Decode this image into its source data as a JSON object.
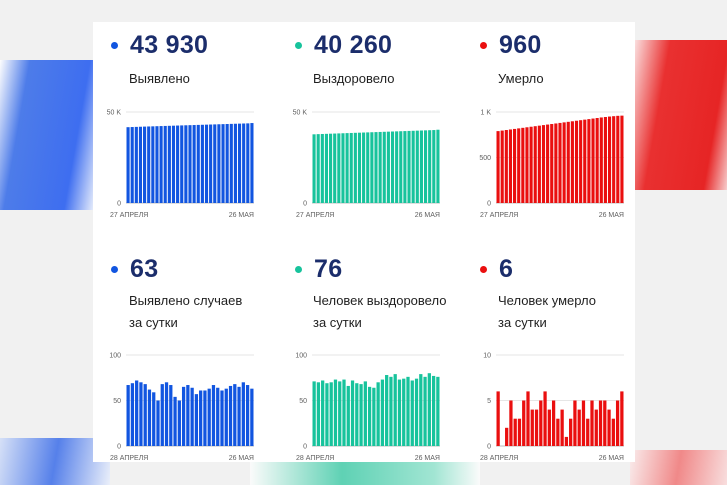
{
  "colors": {
    "blue": "#1155e0",
    "teal": "#17c39c",
    "red": "#ea0f0f",
    "navy": "#1b2d6b"
  },
  "stats": [
    {
      "id": "detected-total",
      "value": "43 930",
      "label": "Выявлено",
      "color": "#1155e0"
    },
    {
      "id": "recovered-total",
      "value": "40 260",
      "label": "Выздоровело",
      "color": "#17c39c"
    },
    {
      "id": "deaths-total",
      "value": "960",
      "label": "Умерло",
      "color": "#ea0f0f"
    },
    {
      "id": "detected-daily",
      "value": "63",
      "label": "Выявлено случаев",
      "label2": "за сутки",
      "color": "#1155e0"
    },
    {
      "id": "recovered-daily",
      "value": "76",
      "label": "Человек выздоровело",
      "label2": "за сутки",
      "color": "#17c39c"
    },
    {
      "id": "deaths-daily",
      "value": "6",
      "label": "Человек умерло",
      "label2": "за сутки",
      "color": "#ea0f0f"
    }
  ],
  "chart_data": [
    {
      "type": "bar",
      "title": "Выявлено",
      "color": "#1155e0",
      "ylim": [
        0,
        50000
      ],
      "yticks": [
        {
          "v": 0,
          "label": "0"
        },
        {
          "v": 50000,
          "label": "50 K"
        }
      ],
      "xstart": "27 АПРЕЛЯ",
      "xend": "26 МАЯ",
      "values": [
        41660,
        41740,
        41820,
        41900,
        41980,
        42050,
        42120,
        42200,
        42270,
        42340,
        42410,
        42480,
        42560,
        42630,
        42700,
        42770,
        42840,
        42910,
        42980,
        43050,
        43120,
        43190,
        43260,
        43330,
        43400,
        43470,
        43540,
        43610,
        43680,
        43750,
        43930
      ]
    },
    {
      "type": "bar",
      "title": "Выздоровело",
      "color": "#17c39c",
      "ylim": [
        0,
        50000
      ],
      "yticks": [
        {
          "v": 0,
          "label": "0"
        },
        {
          "v": 50000,
          "label": "50 K"
        }
      ],
      "xstart": "27 АПРЕЛЯ",
      "xend": "26 МАЯ",
      "values": [
        37740,
        37840,
        37920,
        38000,
        38080,
        38160,
        38240,
        38320,
        38400,
        38480,
        38560,
        38640,
        38720,
        38800,
        38880,
        38960,
        39040,
        39120,
        39200,
        39280,
        39360,
        39440,
        39520,
        39600,
        39680,
        39760,
        39840,
        39920,
        40000,
        40080,
        40260
      ]
    },
    {
      "type": "bar",
      "title": "Умерло",
      "color": "#ea0f0f",
      "ylim": [
        0,
        1000
      ],
      "yticks": [
        {
          "v": 0,
          "label": "0"
        },
        {
          "v": 500,
          "label": "500"
        },
        {
          "v": 1000,
          "label": "1 K"
        }
      ],
      "xstart": "27 АПРЕЛЯ",
      "xend": "26 МАЯ",
      "values": [
        790,
        796,
        802,
        808,
        814,
        820,
        826,
        832,
        838,
        844,
        850,
        856,
        862,
        868,
        874,
        880,
        886,
        892,
        898,
        904,
        910,
        916,
        922,
        928,
        934,
        940,
        945,
        950,
        954,
        958,
        960
      ]
    },
    {
      "type": "bar",
      "title": "Выявлено случаев за сутки",
      "color": "#1155e0",
      "ylim": [
        0,
        100
      ],
      "yticks": [
        {
          "v": 0,
          "label": "0"
        },
        {
          "v": 50,
          "label": "50"
        },
        {
          "v": 100,
          "label": "100"
        }
      ],
      "xstart": "28 АПРЕЛЯ",
      "xend": "26 МАЯ",
      "values": [
        67,
        69,
        72,
        70,
        68,
        62,
        59,
        50,
        68,
        70,
        67,
        54,
        50,
        65,
        67,
        64,
        57,
        61,
        61,
        63,
        67,
        64,
        61,
        63,
        66,
        68,
        65,
        70,
        67,
        63
      ]
    },
    {
      "type": "bar",
      "title": "Человек выздоровело за сутки",
      "color": "#17c39c",
      "ylim": [
        0,
        100
      ],
      "yticks": [
        {
          "v": 0,
          "label": "0"
        },
        {
          "v": 50,
          "label": "50"
        },
        {
          "v": 100,
          "label": "100"
        }
      ],
      "xstart": "28 АПРЕЛЯ",
      "xend": "26 МАЯ",
      "values": [
        71,
        70,
        72,
        69,
        70,
        73,
        71,
        73,
        66,
        72,
        69,
        68,
        71,
        65,
        64,
        70,
        73,
        78,
        76,
        79,
        73,
        74,
        76,
        72,
        74,
        79,
        76,
        80,
        77,
        76
      ]
    },
    {
      "type": "bar",
      "title": "Человек умерло за сутки",
      "color": "#ea0f0f",
      "ylim": [
        0,
        10
      ],
      "yticks": [
        {
          "v": 0,
          "label": "0"
        },
        {
          "v": 5,
          "label": "5"
        },
        {
          "v": 10,
          "label": "10"
        }
      ],
      "xstart": "28 АПРЕЛЯ",
      "xend": "26 МАЯ",
      "values": [
        6,
        0,
        2,
        5,
        3,
        3,
        5,
        6,
        4,
        4,
        5,
        6,
        4,
        5,
        3,
        4,
        1,
        3,
        5,
        4,
        5,
        3,
        5,
        4,
        5,
        5,
        4,
        3,
        5,
        6
      ]
    }
  ]
}
